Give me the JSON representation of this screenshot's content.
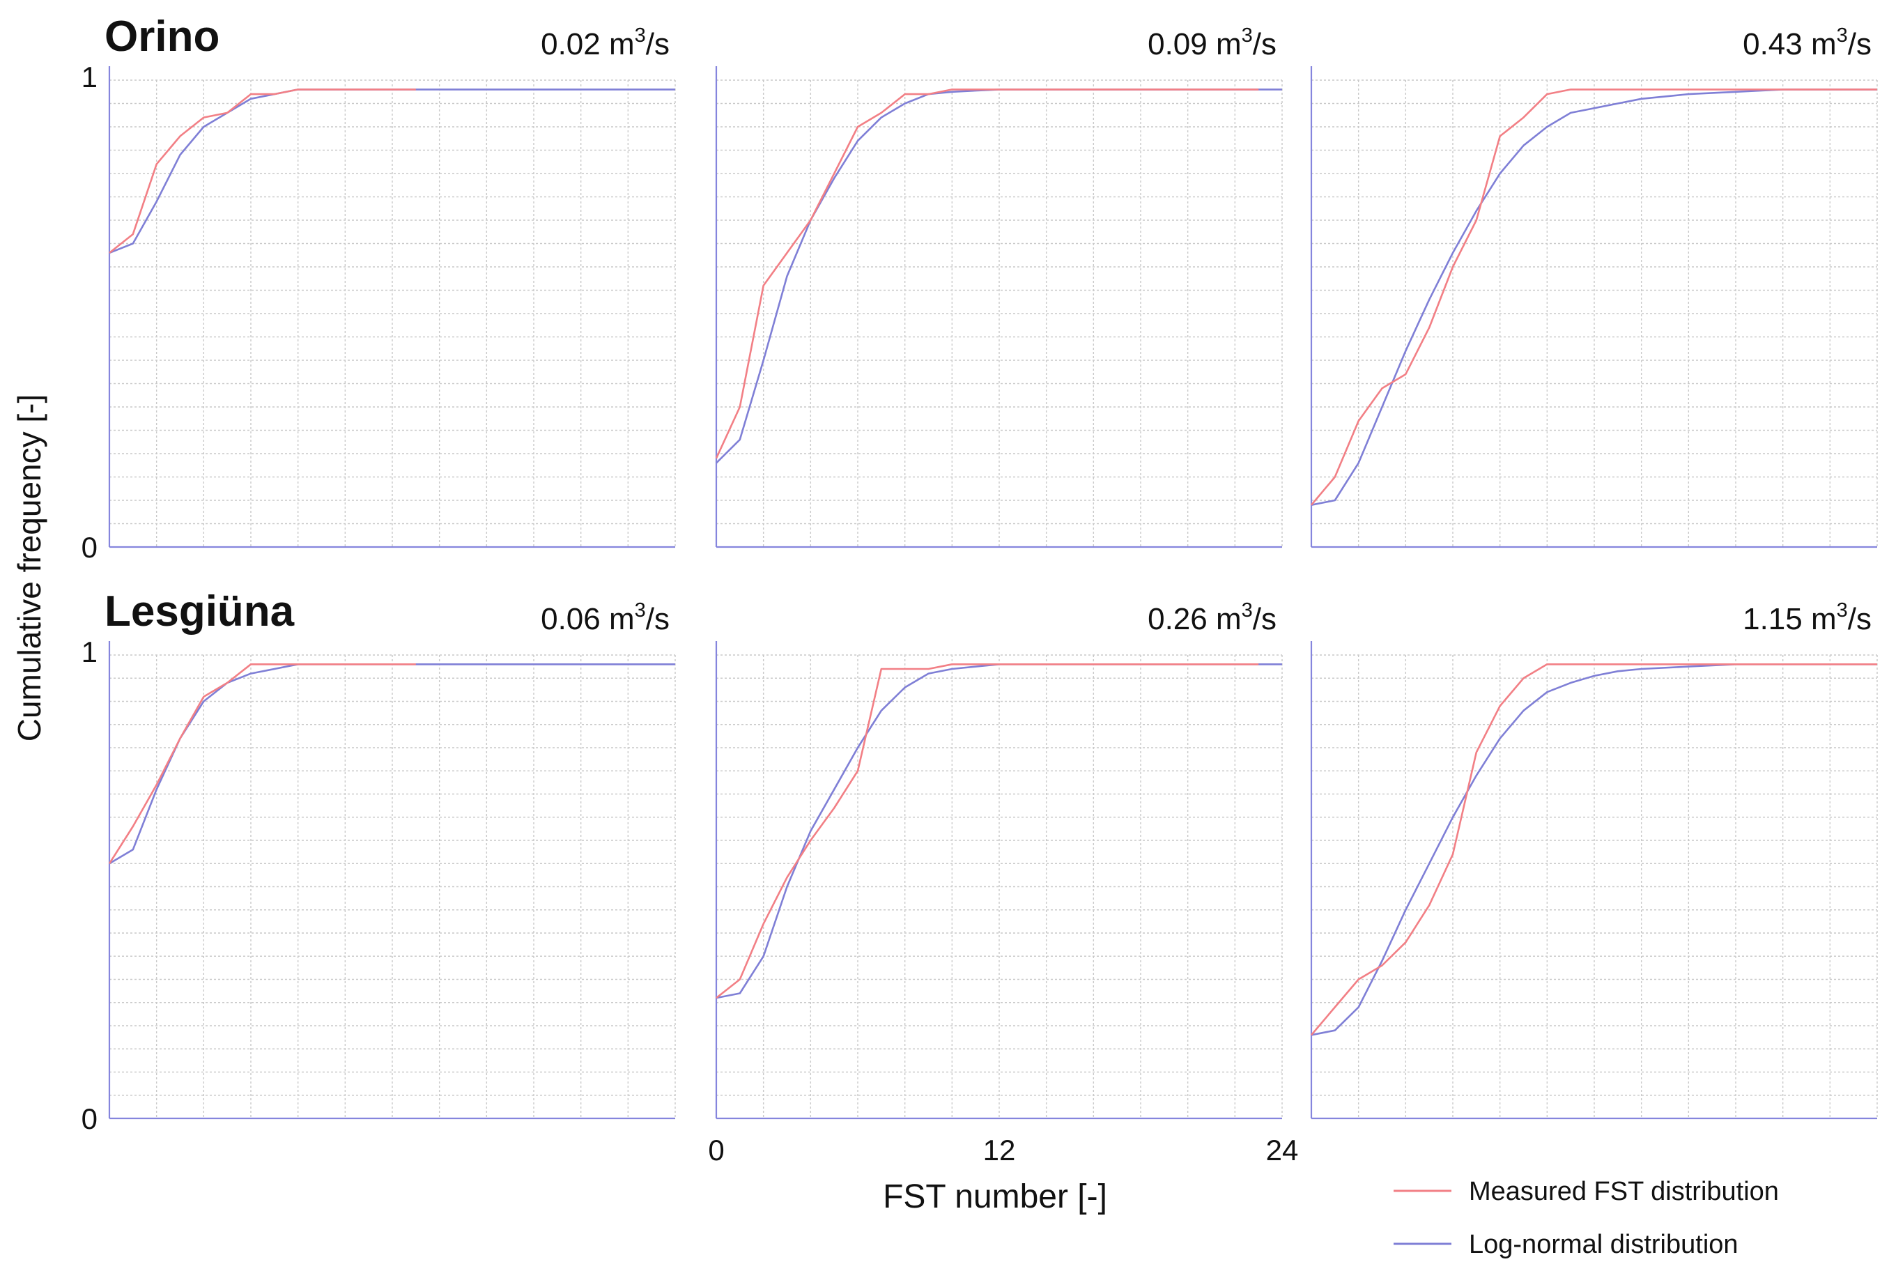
{
  "ylabel": "Cumulative frequency [-]",
  "xlabel": "FST number [-]",
  "legend": {
    "placement": "bottom-right",
    "items": [
      {
        "label": "Measured FST distribution",
        "color": "#f27f85"
      },
      {
        "label": "Log-normal distribution",
        "color": "#7f7fd6"
      }
    ]
  },
  "grid": true,
  "chart_data": [
    {
      "type": "line",
      "row": 0,
      "col": 0,
      "site_label": "Orino",
      "flow_prefix": "0.02 m",
      "flow_exp": "3",
      "flow_suffix": "/s",
      "xlim": [
        0,
        24
      ],
      "ylim": [
        0,
        1
      ],
      "y_tick_labels": [
        "0",
        "1"
      ],
      "x_tick_labels": [],
      "series": [
        {
          "name": "Measured FST distribution",
          "color": "#f27f85",
          "x": [
            0,
            1,
            2,
            3,
            4,
            5,
            6,
            7,
            8,
            9,
            10,
            11,
            12,
            13
          ],
          "y": [
            0.63,
            0.67,
            0.82,
            0.88,
            0.92,
            0.93,
            0.97,
            0.97,
            0.98,
            0.98,
            0.98,
            0.98,
            0.98,
            0.98
          ]
        },
        {
          "name": "Log-normal distribution",
          "color": "#7f7fd6",
          "x": [
            0,
            1,
            2,
            3,
            4,
            5,
            6,
            7,
            8,
            9,
            10,
            12,
            14,
            16,
            18,
            20,
            22,
            24
          ],
          "y": [
            0.63,
            0.65,
            0.74,
            0.84,
            0.9,
            0.93,
            0.96,
            0.97,
            0.98,
            0.98,
            0.98,
            0.98,
            0.98,
            0.98,
            0.98,
            0.98,
            0.98,
            0.98
          ]
        }
      ]
    },
    {
      "type": "line",
      "row": 0,
      "col": 1,
      "site_label": "",
      "flow_prefix": "0.09 m",
      "flow_exp": "3",
      "flow_suffix": "/s",
      "xlim": [
        0,
        24
      ],
      "ylim": [
        0,
        1
      ],
      "y_tick_labels": [],
      "x_tick_labels": [],
      "series": [
        {
          "name": "Measured FST distribution",
          "color": "#f27f85",
          "x": [
            0,
            1,
            2,
            3,
            4,
            5,
            6,
            7,
            8,
            9,
            10,
            12,
            14,
            16,
            18,
            20,
            22,
            23
          ],
          "y": [
            0.19,
            0.3,
            0.56,
            0.63,
            0.7,
            0.8,
            0.9,
            0.93,
            0.97,
            0.97,
            0.98,
            0.98,
            0.98,
            0.98,
            0.98,
            0.98,
            0.98,
            0.98
          ]
        },
        {
          "name": "Log-normal distribution",
          "color": "#7f7fd6",
          "x": [
            0,
            1,
            2,
            3,
            4,
            5,
            6,
            7,
            8,
            9,
            10,
            12,
            14,
            16,
            18,
            20,
            22,
            24
          ],
          "y": [
            0.18,
            0.23,
            0.4,
            0.58,
            0.7,
            0.79,
            0.87,
            0.92,
            0.95,
            0.97,
            0.975,
            0.98,
            0.98,
            0.98,
            0.98,
            0.98,
            0.98,
            0.98
          ]
        }
      ]
    },
    {
      "type": "line",
      "row": 0,
      "col": 2,
      "site_label": "",
      "flow_prefix": "0.43 m",
      "flow_exp": "3",
      "flow_suffix": "/s",
      "xlim": [
        0,
        24
      ],
      "ylim": [
        0,
        1
      ],
      "y_tick_labels": [],
      "x_tick_labels": [],
      "series": [
        {
          "name": "Measured FST distribution",
          "color": "#f27f85",
          "x": [
            0,
            1,
            2,
            3,
            4,
            5,
            6,
            7,
            8,
            9,
            10,
            11,
            12,
            14,
            16,
            18,
            20,
            22,
            24
          ],
          "y": [
            0.09,
            0.15,
            0.27,
            0.34,
            0.37,
            0.47,
            0.6,
            0.7,
            0.88,
            0.92,
            0.97,
            0.98,
            0.98,
            0.98,
            0.98,
            0.98,
            0.98,
            0.98,
            0.98
          ]
        },
        {
          "name": "Log-normal distribution",
          "color": "#7f7fd6",
          "x": [
            0,
            1,
            2,
            3,
            4,
            5,
            6,
            7,
            8,
            9,
            10,
            11,
            12,
            13,
            14,
            16,
            18,
            20,
            22,
            24
          ],
          "y": [
            0.09,
            0.1,
            0.18,
            0.3,
            0.42,
            0.53,
            0.63,
            0.72,
            0.8,
            0.86,
            0.9,
            0.93,
            0.94,
            0.95,
            0.96,
            0.97,
            0.975,
            0.98,
            0.98,
            0.98
          ]
        }
      ]
    },
    {
      "type": "line",
      "row": 1,
      "col": 0,
      "site_label": "Lesgiüna",
      "flow_prefix": "0.06 m",
      "flow_exp": "3",
      "flow_suffix": "/s",
      "xlim": [
        0,
        24
      ],
      "ylim": [
        0,
        1
      ],
      "y_tick_labels": [
        "0",
        "1"
      ],
      "x_tick_labels": [],
      "series": [
        {
          "name": "Measured FST distribution",
          "color": "#f27f85",
          "x": [
            0,
            1,
            2,
            3,
            4,
            5,
            6,
            7,
            8,
            9,
            10,
            11,
            12,
            13
          ],
          "y": [
            0.55,
            0.63,
            0.72,
            0.82,
            0.91,
            0.94,
            0.98,
            0.98,
            0.98,
            0.98,
            0.98,
            0.98,
            0.98,
            0.98
          ]
        },
        {
          "name": "Log-normal distribution",
          "color": "#7f7fd6",
          "x": [
            0,
            1,
            2,
            3,
            4,
            5,
            6,
            7,
            8,
            9,
            10,
            12,
            14,
            16,
            18,
            20,
            22,
            24
          ],
          "y": [
            0.55,
            0.58,
            0.71,
            0.82,
            0.9,
            0.94,
            0.96,
            0.97,
            0.98,
            0.98,
            0.98,
            0.98,
            0.98,
            0.98,
            0.98,
            0.98,
            0.98,
            0.98
          ]
        }
      ]
    },
    {
      "type": "line",
      "row": 1,
      "col": 1,
      "site_label": "",
      "flow_prefix": "0.26 m",
      "flow_exp": "3",
      "flow_suffix": "/s",
      "xlim": [
        0,
        24
      ],
      "ylim": [
        0,
        1
      ],
      "y_tick_labels": [],
      "x_tick_labels": [
        "0",
        "12",
        "24"
      ],
      "series": [
        {
          "name": "Measured FST distribution",
          "color": "#f27f85",
          "x": [
            0,
            1,
            2,
            3,
            4,
            5,
            6,
            7,
            8,
            9,
            10,
            12,
            14,
            16,
            18,
            20,
            22,
            23
          ],
          "y": [
            0.26,
            0.3,
            0.42,
            0.52,
            0.6,
            0.67,
            0.75,
            0.97,
            0.97,
            0.97,
            0.98,
            0.98,
            0.98,
            0.98,
            0.98,
            0.98,
            0.98,
            0.98
          ]
        },
        {
          "name": "Log-normal distribution",
          "color": "#7f7fd6",
          "x": [
            0,
            1,
            2,
            3,
            4,
            5,
            6,
            7,
            8,
            9,
            10,
            12,
            14,
            16,
            18,
            20,
            22,
            24
          ],
          "y": [
            0.26,
            0.27,
            0.35,
            0.5,
            0.62,
            0.71,
            0.8,
            0.88,
            0.93,
            0.96,
            0.97,
            0.98,
            0.98,
            0.98,
            0.98,
            0.98,
            0.98,
            0.98
          ]
        }
      ]
    },
    {
      "type": "line",
      "row": 1,
      "col": 2,
      "site_label": "",
      "flow_prefix": "1.15 m",
      "flow_exp": "3",
      "flow_suffix": "/s",
      "xlim": [
        0,
        24
      ],
      "ylim": [
        0,
        1
      ],
      "y_tick_labels": [],
      "x_tick_labels": [],
      "series": [
        {
          "name": "Measured FST distribution",
          "color": "#f27f85",
          "x": [
            0,
            1,
            2,
            3,
            4,
            5,
            6,
            7,
            8,
            9,
            10,
            11,
            12,
            14,
            16,
            18,
            20,
            22,
            24
          ],
          "y": [
            0.18,
            0.24,
            0.3,
            0.33,
            0.38,
            0.46,
            0.57,
            0.79,
            0.89,
            0.95,
            0.98,
            0.98,
            0.98,
            0.98,
            0.98,
            0.98,
            0.98,
            0.98,
            0.98
          ]
        },
        {
          "name": "Log-normal distribution",
          "color": "#7f7fd6",
          "x": [
            0,
            1,
            2,
            3,
            4,
            5,
            6,
            7,
            8,
            9,
            10,
            11,
            12,
            13,
            14,
            16,
            18,
            20,
            22,
            24
          ],
          "y": [
            0.18,
            0.19,
            0.24,
            0.34,
            0.45,
            0.55,
            0.65,
            0.74,
            0.82,
            0.88,
            0.92,
            0.94,
            0.955,
            0.965,
            0.97,
            0.975,
            0.98,
            0.98,
            0.98,
            0.98
          ]
        }
      ]
    }
  ]
}
